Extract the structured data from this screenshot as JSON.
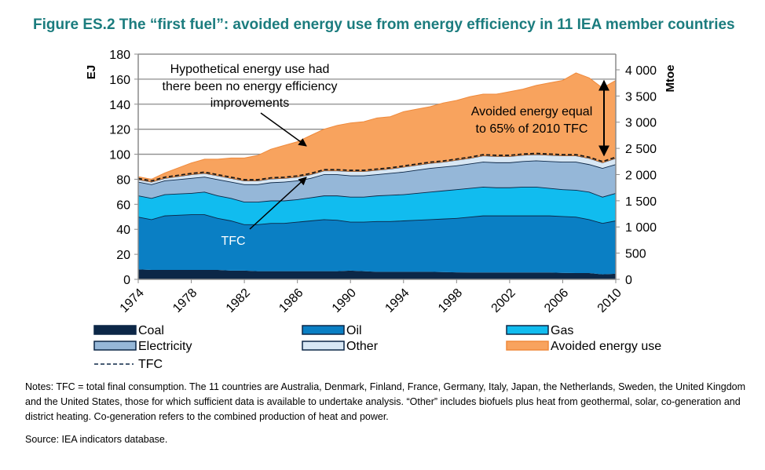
{
  "title": "Figure ES.2  The “first fuel”: avoided energy use from energy efficiency in 11 IEA member countries",
  "notes": "Notes: TFC = total final consumption. The 11 countries are Australia, Denmark, Finland, France, Germany, Italy, Japan, the Netherlands, Sweden, the United Kingdom and the United States, those for which sufficient data is available to undertake analysis. “Other” includes biofuels plus heat from geothermal, solar, co-generation and district heating. Co-generation refers to the combined production of heat and power.",
  "source": "Source: IEA indicators database.",
  "chart_data": {
    "type": "area",
    "stacked": true,
    "ylabel": "EJ",
    "y2label": "Mtoe",
    "ylim": [
      0,
      180
    ],
    "y_ticks": [
      "0",
      "20",
      "40",
      "60",
      "80",
      "100",
      "120",
      "140",
      "160",
      "180"
    ],
    "y2_ticks": [
      "0",
      "500",
      "1 000",
      "1 500",
      "2 000",
      "2 500",
      "3 000",
      "3 500",
      "4 000"
    ],
    "x_ticks": [
      "1974",
      "1978",
      "1982",
      "1986",
      "1990",
      "1994",
      "1998",
      "2002",
      "2006",
      "2010"
    ],
    "grid": true,
    "legend_position": "bottom",
    "x": [
      1974,
      1975,
      1976,
      1977,
      1978,
      1979,
      1980,
      1981,
      1982,
      1983,
      1984,
      1985,
      1986,
      1987,
      1988,
      1989,
      1990,
      1991,
      1992,
      1993,
      1994,
      1995,
      1996,
      1997,
      1998,
      1999,
      2000,
      2001,
      2002,
      2003,
      2004,
      2005,
      2006,
      2007,
      2008,
      2009,
      2010
    ],
    "series": [
      {
        "name": "Coal",
        "color": "#0c2747",
        "values": [
          8,
          7.5,
          7.5,
          7.5,
          7.5,
          7.5,
          7.5,
          7,
          7,
          6.5,
          6.5,
          6.5,
          6.5,
          6.5,
          6.5,
          6.5,
          7,
          6.5,
          6,
          6,
          6,
          6,
          6,
          5.8,
          5.6,
          5.5,
          5.5,
          5.5,
          5.5,
          5.5,
          5.5,
          5.5,
          5.2,
          5,
          5,
          4,
          4.5
        ]
      },
      {
        "name": "Oil",
        "color": "#0a7fc4",
        "values": [
          42,
          40.5,
          43.5,
          44,
          44.5,
          44.5,
          41.5,
          40,
          37,
          37.5,
          38.5,
          38.5,
          39.5,
          40.5,
          41.5,
          41,
          39,
          39.5,
          40.5,
          40.5,
          41,
          41.5,
          42,
          42.7,
          43.4,
          44.5,
          45.5,
          45.5,
          45.5,
          45.5,
          45.5,
          45.5,
          45.3,
          45,
          43,
          41,
          42.5
        ]
      },
      {
        "name": "Gas",
        "color": "#11bcef",
        "values": [
          17,
          17,
          17,
          17,
          17,
          18,
          18,
          18,
          18,
          18,
          18,
          18,
          18,
          18.5,
          19,
          19.5,
          20,
          20,
          20.5,
          21,
          21,
          21.5,
          22,
          22.5,
          23,
          23,
          23,
          22.5,
          22.5,
          23,
          23,
          22,
          21.5,
          21.5,
          22,
          21,
          22
        ]
      },
      {
        "name": "Electricity",
        "color": "#95b7d8",
        "values": [
          11,
          11,
          11,
          11.5,
          12,
          12,
          13,
          13,
          14,
          14,
          14.5,
          15,
          15,
          15.5,
          17,
          17,
          17,
          17,
          17,
          17.5,
          18,
          18.5,
          19,
          19,
          19,
          19.5,
          20,
          20,
          20,
          20.5,
          21,
          21.5,
          22,
          22.5,
          22,
          23,
          23
        ]
      },
      {
        "name": "Other",
        "color": "#d8e7f4",
        "values": [
          2,
          2,
          2,
          2.5,
          3,
          3,
          3,
          3,
          3,
          3,
          3,
          3,
          3,
          3,
          3,
          3,
          3.5,
          3.5,
          3.5,
          3.5,
          4,
          4,
          4,
          4,
          4.5,
          4.5,
          5,
          5,
          5,
          5,
          5,
          5,
          5,
          5,
          5,
          4.5,
          5
        ]
      },
      {
        "name": "Avoided energy use",
        "color": "#f8a35e",
        "values": [
          2,
          2,
          4,
          6.5,
          9,
          11,
          13,
          16,
          18,
          20,
          23.5,
          26,
          28,
          31,
          33,
          36,
          38.5,
          39.5,
          41.5,
          41.5,
          44,
          44.5,
          45,
          47,
          47.5,
          49,
          49,
          49.5,
          51.5,
          52.5,
          55,
          57.5,
          60,
          66,
          64,
          59.5,
          62
        ]
      }
    ],
    "tfc_line": {
      "name": "TFC",
      "style": "dashed"
    },
    "annotations": {
      "hypothetical": [
        "Hypothetical energy use had",
        "there been no energy efficiency",
        "improvements"
      ],
      "tfc_label": "TFC",
      "avoided": [
        "Avoided energy equal",
        "to 65% of 2010 TFC"
      ]
    }
  }
}
